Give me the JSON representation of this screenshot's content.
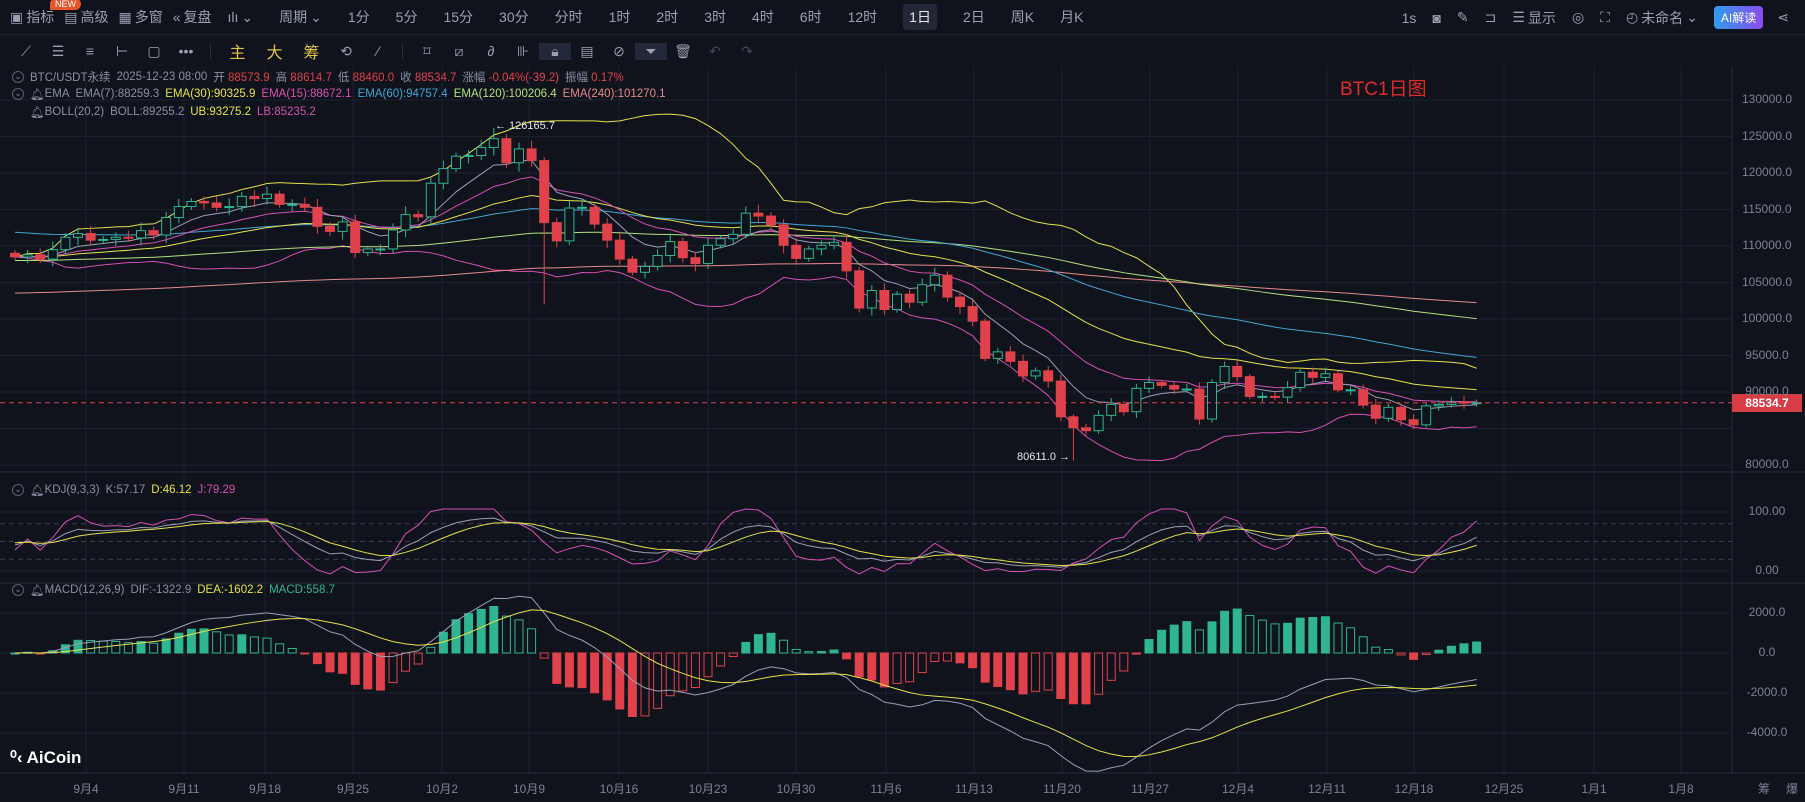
{
  "topbar": {
    "new_badge": "NEW",
    "indicators": "指标",
    "advanced": "高级",
    "multi_window": "多窗",
    "replay": "复盘",
    "period": "周期",
    "periods": [
      "1分",
      "5分",
      "15分",
      "30分",
      "分时",
      "1时",
      "2时",
      "3时",
      "4时",
      "6时",
      "12时",
      "1日",
      "2日",
      "周K",
      "月K"
    ],
    "selected_period": "1日",
    "refresh": "1s",
    "display": "显示",
    "layout_name": "未命名",
    "ai": "AI解读"
  },
  "drawbar": {
    "main": "主",
    "big": "大",
    "chips": "筹"
  },
  "legend": {
    "symbol": "BTC/USDT永续",
    "time": "2025-12-23 08:00",
    "open_l": "开",
    "open": "88573.9",
    "high_l": "高",
    "high": "88614.7",
    "low_l": "低",
    "low": "88460.0",
    "close_l": "收",
    "close": "88534.7",
    "chg_l": "涨幅",
    "chg": "-0.04%(-39.2)",
    "amp_l": "振幅",
    "amp": "0.17%",
    "ema": "EMA",
    "ema7": "EMA(7):88259.3",
    "ema30": "EMA(30):90325.9",
    "ema15": "EMA(15):88672.1",
    "ema60": "EMA(60):94757.4",
    "ema120": "EMA(120):100206.4",
    "ema240": "EMA(240):101270.1",
    "boll": "BOLL(20,2)",
    "boll_mid": "BOLL:89255.2",
    "boll_ub": "UB:93275.2",
    "boll_lb": "LB:85235.2",
    "kdj": "KDJ(9,3,3)",
    "k": "K:57.17",
    "d": "D:46.12",
    "j": "J:79.29",
    "macd": "MACD(12,26,9)",
    "dif": "DIF:-1322.9",
    "dea": "DEA:-1602.2",
    "macd_v": "MACD:558.7"
  },
  "watermark": "BTC1日图",
  "brand": "AiCoin",
  "current_price": "88534.7",
  "high_marker": "← 126165.7",
  "low_marker": "80611.0 →",
  "bottom_right": [
    "筹",
    "爆"
  ],
  "colors": {
    "up": "#2fb58f",
    "down": "#e0424b",
    "ema7": "#9aa0b4",
    "ema15": "#d94fb5",
    "ema30": "#e8e04a",
    "ema60": "#3fa7d6",
    "ema120": "#b5e07a",
    "ema240": "#e88a8a"
  },
  "chart_data": {
    "type": "candlestick",
    "start_date": "2025-08-29",
    "first_open": 109000,
    "closes": [
      108500,
      108800,
      108200,
      109500,
      111200,
      111700,
      110800,
      110900,
      111200,
      111100,
      112100,
      111500,
      113900,
      115400,
      116100,
      115900,
      115300,
      115400,
      116800,
      116500,
      117100,
      115700,
      115700,
      115300,
      112700,
      112000,
      113300,
      109100,
      109600,
      109600,
      112200,
      114300,
      114000,
      118600,
      120600,
      122300,
      122400,
      123500,
      124700,
      121400,
      123300,
      121700,
      113200,
      110700,
      115200,
      115300,
      113000,
      110800,
      108200,
      106400,
      107200,
      108700,
      110600,
      108400,
      107600,
      110100,
      111000,
      111600,
      114500,
      114100,
      112900,
      110100,
      108300,
      109600,
      110100,
      110500,
      106600,
      101500,
      103900,
      101300,
      103400,
      102300,
      104700,
      106000,
      103000,
      101700,
      99700,
      94600,
      95500,
      94200,
      92200,
      92900,
      91500,
      86600,
      85100,
      84700,
      86800,
      88300,
      87300,
      90500,
      91300,
      90900,
      90400,
      90400,
      86300,
      91300,
      93500,
      92100,
      89400,
      89400,
      89300,
      90600,
      92700,
      92000,
      92500,
      90300,
      90300,
      88200,
      86400,
      87900,
      86200,
      85500,
      88100,
      88300,
      88600,
      88500,
      88534.7
    ],
    "extreme_overrides": {
      "high": {
        "38": 126165.7
      },
      "low": {
        "42": 102000,
        "84": 80611.0
      }
    },
    "ema_initial": {
      "60": 112000,
      "120": 108000,
      "240": 103500
    },
    "price_ticks": [
      130000,
      125000,
      120000,
      115000,
      110000,
      105000,
      100000,
      95000,
      90000,
      85000,
      80000
    ],
    "price_tick_labels": [
      "130000.0",
      "125000.0",
      "120000.0",
      "115000.0",
      "110000.0",
      "105000.0",
      "100000.0",
      "95000.0",
      "90000.0",
      "85000.0",
      "80000.0"
    ],
    "kdj_tick_labels": [
      "100.00",
      "0.00"
    ],
    "macd_tick_labels": [
      "2000.0",
      "0.0",
      "-2000.0",
      "-4000.0"
    ],
    "date_labels": [
      "9月4",
      "9月11",
      "9月18",
      "9月25",
      "10月2",
      "10月9",
      "10月16",
      "10月23",
      "10月30",
      "11月6",
      "11月13",
      "11月20",
      "11月27",
      "12月4",
      "12月11",
      "12月18",
      "12月25",
      "1月1",
      "1月8"
    ]
  }
}
